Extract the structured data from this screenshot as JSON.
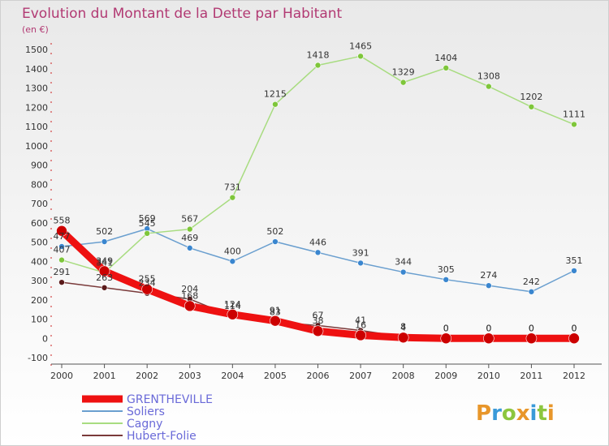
{
  "title": "Evolution du Montant de la Dette par Habitant",
  "subtitle": "(en €)",
  "brand": {
    "letters": [
      "P",
      "r",
      "o",
      "x",
      "i",
      "t",
      "i"
    ],
    "colors": [
      "#e8962a",
      "#3a9ad9",
      "#8cc63f",
      "#e8962a",
      "#3a9ad9",
      "#8cc63f",
      "#e8962a"
    ]
  },
  "chart_data": {
    "type": "line",
    "x": [
      "2000",
      "2001",
      "2002",
      "2003",
      "2004",
      "2005",
      "2006",
      "2007",
      "2008",
      "2009",
      "2010",
      "2011",
      "2012"
    ],
    "ylim": [
      -100,
      1500
    ],
    "yticks": [
      -100,
      0,
      100,
      200,
      300,
      400,
      500,
      600,
      700,
      800,
      900,
      1000,
      1100,
      1200,
      1300,
      1400,
      1500
    ],
    "ytick_labels": [
      "-100",
      "0",
      "100",
      "200",
      "300",
      "400",
      "500",
      "600",
      "700",
      "800",
      "900",
      "1000",
      "1100",
      "1200",
      "1300",
      "1400",
      "1500"
    ],
    "grid": false,
    "legend_position": "bottom-left",
    "series": [
      {
        "name": "Soliers",
        "color": "#6a9fcf",
        "marker": "#3a86cf",
        "width": 1.5,
        "values": [
          477,
          502,
          569,
          469,
          400,
          502,
          446,
          391,
          344,
          305,
          274,
          242,
          351
        ],
        "labels": [
          "477",
          "502",
          "569",
          "469",
          "400",
          "502",
          "446",
          "391",
          "344",
          "305",
          "274",
          "242",
          "351"
        ]
      },
      {
        "name": "Cagny",
        "color": "#a8dc80",
        "marker": "#7ec63a",
        "width": 1.5,
        "values": [
          407,
          341,
          545,
          567,
          731,
          1215,
          1418,
          1465,
          1329,
          1404,
          1308,
          1202,
          1111
        ],
        "labels": [
          "407",
          "341",
          "545",
          "567",
          "731",
          "1215",
          "1418",
          "1465",
          "1329",
          "1404",
          "1308",
          "1202",
          "1111"
        ]
      },
      {
        "name": "Hubert-Folie",
        "color": "#7a3a3a",
        "marker": "#5a1a1a",
        "width": 1.5,
        "values": [
          291,
          263,
          234,
          204,
          114,
          83,
          67,
          41,
          8,
          0,
          0,
          0,
          0
        ],
        "labels": [
          "291",
          "263",
          "234",
          "204",
          "114",
          "83",
          "67",
          "41",
          "8",
          "0",
          "0",
          "0",
          "0"
        ]
      },
      {
        "name": "GRENTHEVILLE",
        "color": "#ee1111",
        "marker": "#cc0000",
        "width": 9,
        "values": [
          558,
          349,
          255,
          168,
          124,
          91,
          38,
          16,
          4,
          0,
          0,
          0,
          0
        ],
        "labels": [
          "558",
          "349",
          "255",
          "168",
          "124",
          "91",
          "38",
          "16",
          "4",
          "0",
          "0",
          "0",
          "0"
        ]
      }
    ]
  }
}
